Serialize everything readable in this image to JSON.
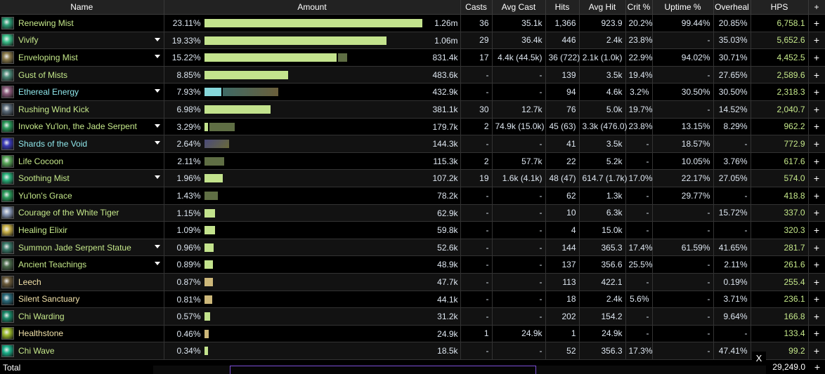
{
  "headers": {
    "name": "Name",
    "amount": "Amount",
    "casts": "Casts",
    "avg_cast": "Avg Cast",
    "hits": "Hits",
    "avg_hit": "Avg Hit",
    "crit": "Crit %",
    "uptime": "Uptime %",
    "overheal": "Overheal",
    "hps": "HPS",
    "plus": "+"
  },
  "colors": {
    "name_default": "#c5e88a",
    "name_cyan": "#8fe6ea",
    "name_item": "#f0e0a8",
    "bar_light": "#c3e38d",
    "bar_dark": "#5f6e44",
    "bar_tan": "#cdb87a",
    "bar_cyan": "#86d7da",
    "hps": "#c5e88a"
  },
  "scale_max_percent": 23.11,
  "rows": [
    {
      "name": "Renewing Mist",
      "color": "default",
      "icon": "renewing-mist-icon",
      "icon_color": "#2b9c74",
      "expand": false,
      "percent": "23.11%",
      "segments": [
        {
          "value": 23.11,
          "kind": "light"
        }
      ],
      "amount": "1.26m",
      "casts": "36",
      "avg_cast": "35.1k",
      "hits": "1,366",
      "avg_hit": "923.9",
      "crit": "20.2%",
      "uptime": "99.44%",
      "overheal": "20.85%",
      "hps": "6,758.1"
    },
    {
      "name": "Vivify",
      "color": "default",
      "icon": "vivify-icon",
      "icon_color": "#3bbf8a",
      "expand": true,
      "percent": "19.33%",
      "segments": [
        {
          "value": 19.33,
          "kind": "light"
        }
      ],
      "amount": "1.06m",
      "casts": "29",
      "avg_cast": "36.4k",
      "hits": "446",
      "avg_hit": "2.4k",
      "crit": "23.8%",
      "uptime": "-",
      "overheal": "35.03%",
      "hps": "5,652.6"
    },
    {
      "name": "Enveloping Mist",
      "color": "default",
      "icon": "enveloping-mist-icon",
      "icon_color": "#8a7a4a",
      "expand": true,
      "percent": "15.22%",
      "segments": [
        {
          "value": 14.0,
          "kind": "light"
        },
        {
          "value": 1.0,
          "kind": "dark"
        }
      ],
      "amount": "831.4k",
      "casts": "17",
      "avg_cast": "4.4k (44.5k)",
      "hits": "36 (722)",
      "avg_hit": "2.1k (1.0k)",
      "crit": "22.9%",
      "uptime": "94.02%",
      "overheal": "30.71%",
      "hps": "4,452.5"
    },
    {
      "name": "Gust of Mists",
      "color": "default",
      "icon": "gust-of-mists-icon",
      "icon_color": "#4c8a78",
      "expand": false,
      "percent": "8.85%",
      "segments": [
        {
          "value": 8.85,
          "kind": "light"
        }
      ],
      "amount": "483.6k",
      "casts": "-",
      "avg_cast": "-",
      "hits": "139",
      "avg_hit": "3.5k",
      "crit": "19.4%",
      "uptime": "-",
      "overheal": "27.65%",
      "hps": "2,589.6"
    },
    {
      "name": "Ethereal Energy",
      "color": "cyan",
      "icon": "ethereal-energy-icon",
      "icon_color": "#8a5a7a",
      "expand": true,
      "percent": "7.93%",
      "segments": [
        {
          "value": 1.8,
          "kind": "cyan"
        },
        {
          "value": 5.9,
          "kind": "grad"
        }
      ],
      "amount": "432.9k",
      "casts": "-",
      "avg_cast": "-",
      "hits": "94",
      "avg_hit": "4.6k",
      "crit": "3.2%",
      "uptime": "30.50%",
      "overheal": "30.50%",
      "hps": "2,318.3"
    },
    {
      "name": "Rushing Wind Kick",
      "color": "default",
      "icon": "rushing-wind-kick-icon",
      "icon_color": "#5a6a78",
      "expand": false,
      "percent": "6.98%",
      "segments": [
        {
          "value": 6.98,
          "kind": "light"
        }
      ],
      "amount": "381.1k",
      "casts": "30",
      "avg_cast": "12.7k",
      "hits": "76",
      "avg_hit": "5.0k",
      "crit": "19.7%",
      "uptime": "-",
      "overheal": "14.52%",
      "hps": "2,040.7"
    },
    {
      "name": "Invoke Yu'lon, the Jade Serpent",
      "color": "default",
      "icon": "invoke-yulon-icon",
      "icon_color": "#2a9a5a",
      "expand": true,
      "percent": "3.29%",
      "segments": [
        {
          "value": 0.4,
          "kind": "light"
        },
        {
          "value": 2.7,
          "kind": "dark"
        }
      ],
      "amount": "179.7k",
      "casts": "2",
      "avg_cast": "74.9k (15.0k)",
      "hits": "45 (63)",
      "avg_hit": "3.3k (476.0)",
      "crit": "23.8%",
      "uptime": "13.15%",
      "overheal": "8.29%",
      "hps": "962.2"
    },
    {
      "name": "Shards of the Void",
      "color": "cyan",
      "icon": "shards-of-the-void-icon",
      "icon_color": "#3a3ab8",
      "expand": true,
      "percent": "2.64%",
      "segments": [
        {
          "value": 2.64,
          "kind": "grad2"
        }
      ],
      "amount": "144.3k",
      "casts": "-",
      "avg_cast": "-",
      "hits": "41",
      "avg_hit": "3.5k",
      "crit": "-",
      "uptime": "18.57%",
      "overheal": "-",
      "hps": "772.9"
    },
    {
      "name": "Life Cocoon",
      "color": "default",
      "icon": "life-cocoon-icon",
      "icon_color": "#5aa85a",
      "expand": false,
      "percent": "2.11%",
      "segments": [
        {
          "value": 2.11,
          "kind": "dark"
        }
      ],
      "amount": "115.3k",
      "casts": "2",
      "avg_cast": "57.7k",
      "hits": "22",
      "avg_hit": "5.2k",
      "crit": "-",
      "uptime": "10.05%",
      "overheal": "3.76%",
      "hps": "617.6"
    },
    {
      "name": "Soothing Mist",
      "color": "default",
      "icon": "soothing-mist-icon",
      "icon_color": "#2ab07a",
      "expand": true,
      "percent": "1.96%",
      "segments": [
        {
          "value": 1.96,
          "kind": "light"
        }
      ],
      "amount": "107.2k",
      "casts": "19",
      "avg_cast": "1.6k (4.1k)",
      "hits": "48 (47)",
      "avg_hit": "614.7 (1.7k)",
      "crit": "17.0%",
      "uptime": "22.17%",
      "overheal": "27.05%",
      "hps": "574.0"
    },
    {
      "name": "Yu'lon's Grace",
      "color": "default",
      "icon": "yulons-grace-icon",
      "icon_color": "#2a9a5a",
      "expand": false,
      "percent": "1.43%",
      "segments": [
        {
          "value": 1.43,
          "kind": "dark"
        }
      ],
      "amount": "78.2k",
      "casts": "-",
      "avg_cast": "-",
      "hits": "62",
      "avg_hit": "1.3k",
      "crit": "-",
      "uptime": "29.77%",
      "overheal": "-",
      "hps": "418.8"
    },
    {
      "name": "Courage of the White Tiger",
      "color": "default",
      "icon": "courage-white-tiger-icon",
      "icon_color": "#8a9ab8",
      "expand": false,
      "percent": "1.15%",
      "segments": [
        {
          "value": 1.15,
          "kind": "light"
        }
      ],
      "amount": "62.9k",
      "casts": "-",
      "avg_cast": "-",
      "hits": "10",
      "avg_hit": "6.3k",
      "crit": "-",
      "uptime": "-",
      "overheal": "15.72%",
      "hps": "337.0"
    },
    {
      "name": "Healing Elixir",
      "color": "default",
      "icon": "healing-elixir-icon",
      "icon_color": "#c8b048",
      "expand": false,
      "percent": "1.09%",
      "segments": [
        {
          "value": 1.09,
          "kind": "light"
        }
      ],
      "amount": "59.8k",
      "casts": "-",
      "avg_cast": "-",
      "hits": "4",
      "avg_hit": "15.0k",
      "crit": "-",
      "uptime": "-",
      "overheal": "-",
      "hps": "320.3"
    },
    {
      "name": "Summon Jade Serpent Statue",
      "color": "default",
      "icon": "jade-serpent-statue-icon",
      "icon_color": "#3a7a6a",
      "expand": true,
      "percent": "0.96%",
      "segments": [
        {
          "value": 0.96,
          "kind": "light"
        }
      ],
      "amount": "52.6k",
      "casts": "-",
      "avg_cast": "-",
      "hits": "144",
      "avg_hit": "365.3",
      "crit": "17.4%",
      "uptime": "61.59%",
      "overheal": "41.65%",
      "hps": "281.7"
    },
    {
      "name": "Ancient Teachings",
      "color": "default",
      "icon": "ancient-teachings-icon",
      "icon_color": "#4a6a4a",
      "expand": true,
      "percent": "0.89%",
      "segments": [
        {
          "value": 0.89,
          "kind": "light"
        }
      ],
      "amount": "48.9k",
      "casts": "-",
      "avg_cast": "-",
      "hits": "137",
      "avg_hit": "356.6",
      "crit": "25.5%",
      "uptime": "-",
      "overheal": "2.11%",
      "hps": "261.6"
    },
    {
      "name": "Leech",
      "color": "item",
      "icon": "leech-icon",
      "icon_color": "#6a5a3a",
      "expand": false,
      "percent": "0.87%",
      "segments": [
        {
          "value": 0.87,
          "kind": "tan"
        }
      ],
      "amount": "47.7k",
      "casts": "-",
      "avg_cast": "-",
      "hits": "113",
      "avg_hit": "422.1",
      "crit": "-",
      "uptime": "-",
      "overheal": "0.19%",
      "hps": "255.4"
    },
    {
      "name": "Silent Sanctuary",
      "color": "item",
      "icon": "silent-sanctuary-icon",
      "icon_color": "#2a6a7a",
      "expand": false,
      "percent": "0.81%",
      "segments": [
        {
          "value": 0.81,
          "kind": "tan"
        }
      ],
      "amount": "44.1k",
      "casts": "-",
      "avg_cast": "-",
      "hits": "18",
      "avg_hit": "2.4k",
      "crit": "5.6%",
      "uptime": "-",
      "overheal": "3.71%",
      "hps": "236.1"
    },
    {
      "name": "Chi Warding",
      "color": "default",
      "icon": "chi-warding-icon",
      "icon_color": "#1a8a6a",
      "expand": false,
      "percent": "0.57%",
      "segments": [
        {
          "value": 0.57,
          "kind": "light"
        }
      ],
      "amount": "31.2k",
      "casts": "-",
      "avg_cast": "-",
      "hits": "202",
      "avg_hit": "154.2",
      "crit": "-",
      "uptime": "-",
      "overheal": "9.64%",
      "hps": "166.8"
    },
    {
      "name": "Healthstone",
      "color": "item",
      "icon": "healthstone-icon",
      "icon_color": "#9ab82a",
      "expand": false,
      "percent": "0.46%",
      "segments": [
        {
          "value": 0.46,
          "kind": "tan"
        }
      ],
      "amount": "24.9k",
      "casts": "1",
      "avg_cast": "24.9k",
      "hits": "1",
      "avg_hit": "24.9k",
      "crit": "-",
      "uptime": "-",
      "overheal": "-",
      "hps": "133.4"
    },
    {
      "name": "Chi Wave",
      "color": "default",
      "icon": "chi-wave-icon",
      "icon_color": "#1ab08a",
      "expand": false,
      "percent": "0.34%",
      "segments": [
        {
          "value": 0.34,
          "kind": "light"
        }
      ],
      "amount": "18.5k",
      "casts": "-",
      "avg_cast": "-",
      "hits": "52",
      "avg_hit": "356.3",
      "crit": "17.3%",
      "uptime": "-",
      "overheal": "47.41%",
      "hps": "99.2"
    }
  ],
  "total": {
    "label": "Total",
    "hps": "29,249.0",
    "plus": "+"
  },
  "overlay": {
    "close": "X"
  }
}
